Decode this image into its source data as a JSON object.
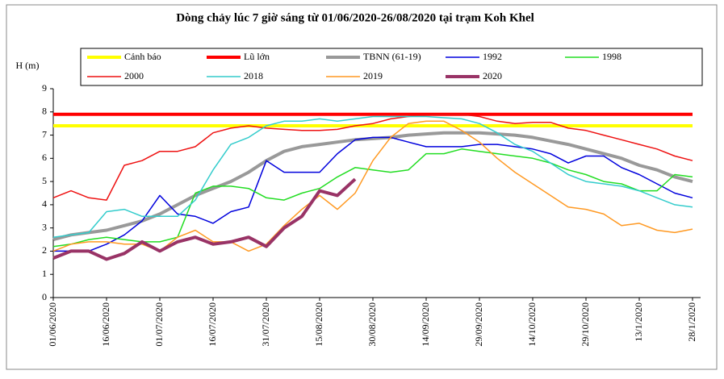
{
  "chart_data": {
    "type": "line",
    "title": "Dòng chảy lúc 7 giờ sáng từ 01/06/2020-26/08/2020 tại trạm Koh Khel",
    "y_label": "H (m)",
    "categories": [
      "01/06/2020",
      null,
      null,
      "16/06/2020",
      null,
      null,
      "01/07/2020",
      null,
      null,
      "16/07/2020",
      null,
      null,
      "31/07/2020",
      null,
      null,
      "15/08/2020",
      null,
      null,
      "30/08/2020",
      null,
      null,
      "14/09/2020",
      null,
      null,
      "29/09/2020",
      null,
      null,
      "14/10/2020",
      null,
      null,
      "29/10/2020",
      null,
      null,
      "13/1/2020",
      null,
      null,
      "28/1/2020"
    ],
    "ylim": [
      0,
      9
    ],
    "yticks": [
      0,
      1,
      2,
      3,
      4,
      5,
      6,
      7,
      8,
      9
    ],
    "series": [
      {
        "name": "Cảnh báo",
        "color": "#ffff00",
        "line_width": 4,
        "values": [
          7.4,
          7.4,
          7.4,
          7.4,
          7.4,
          7.4,
          7.4,
          7.4,
          7.4,
          7.4,
          7.4,
          7.4,
          7.4,
          7.4,
          7.4,
          7.4,
          7.4,
          7.4,
          7.4,
          7.4,
          7.4,
          7.4,
          7.4,
          7.4,
          7.4,
          7.4,
          7.4,
          7.4,
          7.4,
          7.4,
          7.4,
          7.4,
          7.4,
          7.4,
          7.4,
          7.4,
          7.4
        ]
      },
      {
        "name": "Lũ lớn",
        "color": "#ff0000",
        "line_width": 4,
        "values": [
          7.9,
          7.9,
          7.9,
          7.9,
          7.9,
          7.9,
          7.9,
          7.9,
          7.9,
          7.9,
          7.9,
          7.9,
          7.9,
          7.9,
          7.9,
          7.9,
          7.9,
          7.9,
          7.9,
          7.9,
          7.9,
          7.9,
          7.9,
          7.9,
          7.9,
          7.9,
          7.9,
          7.9,
          7.9,
          7.9,
          7.9,
          7.9,
          7.9,
          7.9,
          7.9,
          7.9,
          7.9
        ]
      },
      {
        "name": "TBNN (61-19)",
        "color": "#999999",
        "line_width": 4,
        "values": [
          2.5,
          2.7,
          2.8,
          2.9,
          3.1,
          3.3,
          3.6,
          4.0,
          4.4,
          4.7,
          5.0,
          5.4,
          5.9,
          6.3,
          6.5,
          6.6,
          6.7,
          6.8,
          6.85,
          6.9,
          7.0,
          7.05,
          7.1,
          7.1,
          7.1,
          7.05,
          7.0,
          6.9,
          6.75,
          6.6,
          6.4,
          6.2,
          6.0,
          5.7,
          5.5,
          5.2,
          5.0
        ]
      },
      {
        "name": "1992",
        "color": "#0000dd",
        "line_width": 1.5,
        "values": [
          2.0,
          2.0,
          2.0,
          2.3,
          2.7,
          3.3,
          4.4,
          3.6,
          3.5,
          3.2,
          3.7,
          3.9,
          5.9,
          5.4,
          5.4,
          5.4,
          6.2,
          6.8,
          6.9,
          6.9,
          6.7,
          6.5,
          6.5,
          6.5,
          6.6,
          6.6,
          6.5,
          6.4,
          6.2,
          5.8,
          6.1,
          6.1,
          5.6,
          5.3,
          4.9,
          4.5,
          4.3
        ]
      },
      {
        "name": "1998",
        "color": "#22dd22",
        "line_width": 1.5,
        "values": [
          2.2,
          2.3,
          2.5,
          2.6,
          2.5,
          2.4,
          2.4,
          2.6,
          4.5,
          4.8,
          4.8,
          4.7,
          4.3,
          4.2,
          4.5,
          4.7,
          5.2,
          5.6,
          5.5,
          5.4,
          5.5,
          6.2,
          6.2,
          6.4,
          6.3,
          6.2,
          6.1,
          6.0,
          5.8,
          5.5,
          5.3,
          5.0,
          4.9,
          4.6,
          4.6,
          5.3,
          5.2
        ]
      },
      {
        "name": "2000",
        "color": "#ee1111",
        "line_width": 1.5,
        "values": [
          4.3,
          4.6,
          4.3,
          4.2,
          5.7,
          5.9,
          6.3,
          6.3,
          6.5,
          7.1,
          7.3,
          7.4,
          7.3,
          7.25,
          7.2,
          7.2,
          7.25,
          7.4,
          7.5,
          7.7,
          7.8,
          7.85,
          7.9,
          7.9,
          7.8,
          7.6,
          7.5,
          7.55,
          7.55,
          7.3,
          7.2,
          7.0,
          6.8,
          6.6,
          6.4,
          6.1,
          5.9
        ]
      },
      {
        "name": "2018",
        "color": "#33cccc",
        "line_width": 1.5,
        "values": [
          2.6,
          2.7,
          2.8,
          3.7,
          3.8,
          3.5,
          3.5,
          3.5,
          4.2,
          5.5,
          6.6,
          6.9,
          7.4,
          7.6,
          7.6,
          7.7,
          7.6,
          7.7,
          7.8,
          7.8,
          7.8,
          7.8,
          7.75,
          7.7,
          7.5,
          7.1,
          6.6,
          6.3,
          5.8,
          5.3,
          5.0,
          4.9,
          4.8,
          4.6,
          4.3,
          4.0,
          3.9
        ]
      },
      {
        "name": "2019",
        "color": "#ff9922",
        "line_width": 1.5,
        "values": [
          2.0,
          2.3,
          2.4,
          2.4,
          2.3,
          2.3,
          2.0,
          2.6,
          2.9,
          2.4,
          2.4,
          2.0,
          2.3,
          3.1,
          3.8,
          4.4,
          3.8,
          4.5,
          5.9,
          6.9,
          7.5,
          7.6,
          7.6,
          7.2,
          6.7,
          6.0,
          5.4,
          4.9,
          4.4,
          3.9,
          3.8,
          3.6,
          3.1,
          3.2,
          2.9,
          2.8,
          2.95
        ]
      },
      {
        "name": "2020",
        "color": "#993366",
        "line_width": 4,
        "values": [
          1.7,
          2.0,
          2.0,
          1.65,
          1.9,
          2.4,
          2.0,
          2.4,
          2.6,
          2.3,
          2.4,
          2.6,
          2.2,
          3.0,
          3.5,
          4.6,
          4.4,
          5.1,
          null,
          null,
          null,
          null,
          null,
          null,
          null,
          null,
          null,
          null,
          null,
          null,
          null,
          null,
          null,
          null,
          null,
          null,
          null
        ]
      }
    ]
  }
}
